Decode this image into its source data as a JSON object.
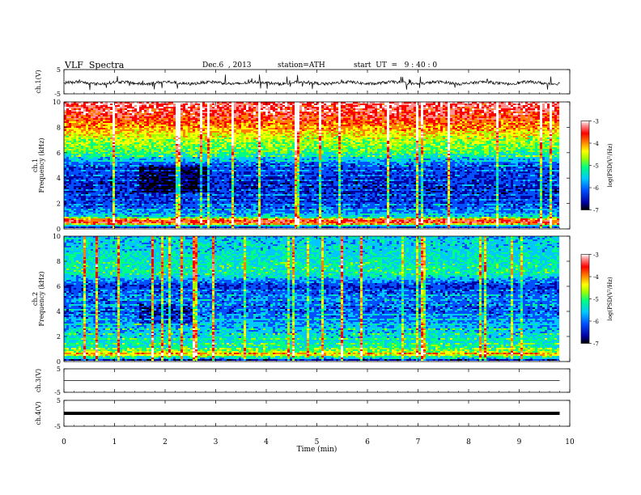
{
  "header": {
    "title": "VLF  Spectra",
    "date": "Dec.6  , 2013",
    "station": "station=ATH",
    "start": "start  UT  =   9 : 40 : 0"
  },
  "chart_data": [
    {
      "type": "line",
      "name": "ch1-waveform",
      "ylabel": "ch.1(V)",
      "ylim": [
        -5,
        5
      ],
      "yticks": [
        "5",
        "-5"
      ],
      "note_values": "noisy signal around -0.5 V with spikes to about ±3 V"
    },
    {
      "type": "heatmap",
      "name": "ch1-spectrogram",
      "ylabel": "ch.1\nFrequency  (kHz)",
      "ylim": [
        0,
        10
      ],
      "yticks": [
        "0",
        "2",
        "4",
        "6",
        "8",
        "10"
      ],
      "colorbar": {
        "label": "log(PSD(V²/Hz)",
        "ticks": [
          "-3",
          "-4",
          "-5",
          "-6",
          "-7"
        ],
        "range": [
          -7,
          -3
        ]
      },
      "profile": [
        {
          "f": 0.0,
          "v": -6.8
        },
        {
          "f": 0.5,
          "v": -3.2
        },
        {
          "f": 1.0,
          "v": -5.8
        },
        {
          "f": 2.0,
          "v": -6.3
        },
        {
          "f": 3.0,
          "v": -6.5
        },
        {
          "f": 4.0,
          "v": -6.4
        },
        {
          "f": 5.0,
          "v": -6.2
        },
        {
          "f": 6.0,
          "v": -5.0
        },
        {
          "f": 7.0,
          "v": -4.6
        },
        {
          "f": 8.0,
          "v": -4.0
        },
        {
          "f": 9.0,
          "v": -3.5
        },
        {
          "f": 10.0,
          "v": -3.3
        }
      ]
    },
    {
      "type": "heatmap",
      "name": "ch2-spectrogram",
      "ylabel": "ch.2\nFrequency  (kHz)",
      "ylim": [
        0,
        10
      ],
      "yticks": [
        "0",
        "2",
        "4",
        "6",
        "8",
        "10"
      ],
      "colorbar": {
        "label": "log(PSD(V²/Hz)",
        "ticks": [
          "-3",
          "-4",
          "-5",
          "-6",
          "-7"
        ],
        "range": [
          -7,
          -3
        ]
      },
      "profile": [
        {
          "f": 0.0,
          "v": -6.9
        },
        {
          "f": 0.5,
          "v": -4.2
        },
        {
          "f": 1.0,
          "v": -5.2
        },
        {
          "f": 2.0,
          "v": -5.5
        },
        {
          "f": 3.0,
          "v": -5.8
        },
        {
          "f": 4.0,
          "v": -6.2
        },
        {
          "f": 5.0,
          "v": -6.0
        },
        {
          "f": 6.0,
          "v": -6.4
        },
        {
          "f": 7.0,
          "v": -5.2
        },
        {
          "f": 8.0,
          "v": -5.3
        },
        {
          "f": 9.0,
          "v": -5.5
        },
        {
          "f": 10.0,
          "v": -5.6
        }
      ]
    },
    {
      "type": "line",
      "name": "ch3-waveform",
      "ylabel": "ch.3(V)",
      "ylim": [
        -5,
        5
      ],
      "yticks": [
        "5",
        "-5"
      ],
      "level": 0
    },
    {
      "type": "line",
      "name": "ch4-waveform",
      "ylabel": "ch.4(V)",
      "ylim": [
        -5,
        5
      ],
      "yticks": [
        "5",
        "-5"
      ],
      "level": 0
    }
  ],
  "xaxis": {
    "label": "Time  (min)",
    "range": [
      0,
      10
    ],
    "ticks": [
      "0",
      "1",
      "2",
      "3",
      "4",
      "5",
      "6",
      "7",
      "8",
      "9",
      "10"
    ],
    "data_end": 9.8
  },
  "colors": {
    "palette": [
      "#000000",
      "#0000a0",
      "#0050ff",
      "#00c8ff",
      "#00ff80",
      "#a0ff00",
      "#ffff00",
      "#ff8000",
      "#ff0000",
      "#ff9090",
      "#ffffff"
    ]
  }
}
